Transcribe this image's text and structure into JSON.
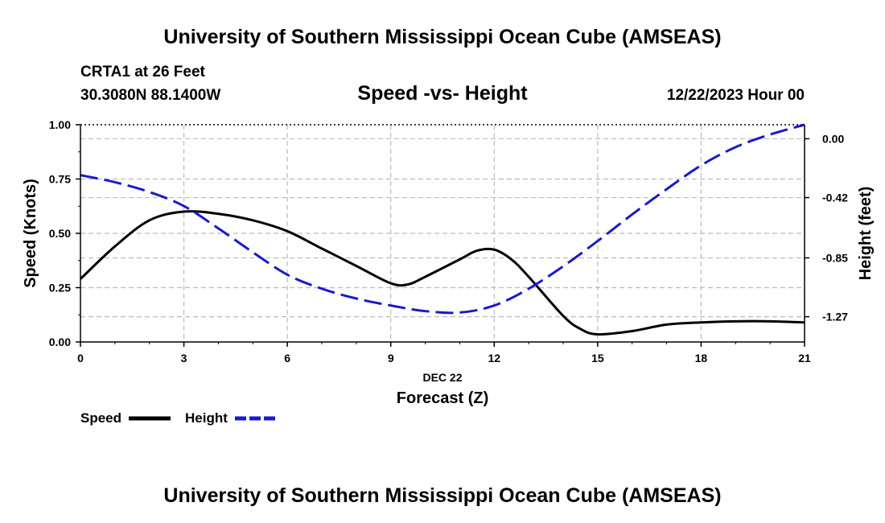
{
  "header": {
    "title": "University of Southern Mississippi Ocean Cube (AMSEAS)",
    "station": "CRTA1 at 26 Feet",
    "coords": "30.3080N  88.1400W",
    "chart_title": "Speed -vs- Height",
    "datetime": "12/22/2023 Hour 00"
  },
  "footer": {
    "title": "University of Southern Mississippi Ocean Cube (AMSEAS)"
  },
  "colors": {
    "speed": "#000000",
    "height": "#1a1acc",
    "grid": "#bbbbbb"
  },
  "chart_data": {
    "type": "line",
    "title": "Speed -vs- Height",
    "xlabel": "Forecast (Z)",
    "xdate": "DEC 22",
    "ylabel": "Speed (Knots)",
    "y2label": "Height (feet)",
    "xlim": [
      0,
      21
    ],
    "ylim": [
      0,
      1
    ],
    "y2lim": [
      -1.45,
      0.1
    ],
    "x_ticks": [
      0,
      3,
      6,
      9,
      12,
      15,
      18,
      21
    ],
    "y_ticks": [
      "0.00",
      "0.25",
      "0.50",
      "0.75",
      "1.00"
    ],
    "y2_ticks": [
      "0.00",
      "-0.42",
      "-0.85",
      "-1.27"
    ],
    "y2_tick_values": [
      0.0,
      -0.42,
      -0.85,
      -1.27
    ],
    "grid": true,
    "legend": {
      "position": "bottom-left",
      "entries": [
        "Speed",
        "Height"
      ]
    },
    "series": [
      {
        "name": "Speed",
        "axis": "left",
        "style": "solid",
        "x": [
          0,
          1,
          2,
          3,
          4,
          5,
          6,
          7,
          8,
          9,
          9.5,
          10,
          11,
          11.5,
          12,
          12.5,
          13,
          14,
          14.5,
          15,
          16,
          17,
          18,
          19,
          20,
          21
        ],
        "values": [
          0.29,
          0.44,
          0.56,
          0.6,
          0.59,
          0.56,
          0.51,
          0.43,
          0.35,
          0.27,
          0.265,
          0.3,
          0.38,
          0.42,
          0.425,
          0.38,
          0.3,
          0.12,
          0.06,
          0.035,
          0.05,
          0.08,
          0.09,
          0.095,
          0.095,
          0.09
        ]
      },
      {
        "name": "Height",
        "axis": "right",
        "style": "dashed",
        "x": [
          0,
          1,
          2,
          3,
          4,
          5,
          6,
          7,
          8,
          9,
          10,
          11,
          12,
          13,
          14,
          15,
          16,
          17,
          18,
          19,
          20,
          21
        ],
        "values": [
          -0.26,
          -0.31,
          -0.38,
          -0.48,
          -0.64,
          -0.81,
          -0.97,
          -1.07,
          -1.14,
          -1.19,
          -1.23,
          -1.24,
          -1.19,
          -1.07,
          -0.91,
          -0.73,
          -0.54,
          -0.36,
          -0.19,
          -0.06,
          0.03,
          0.1
        ]
      }
    ]
  }
}
